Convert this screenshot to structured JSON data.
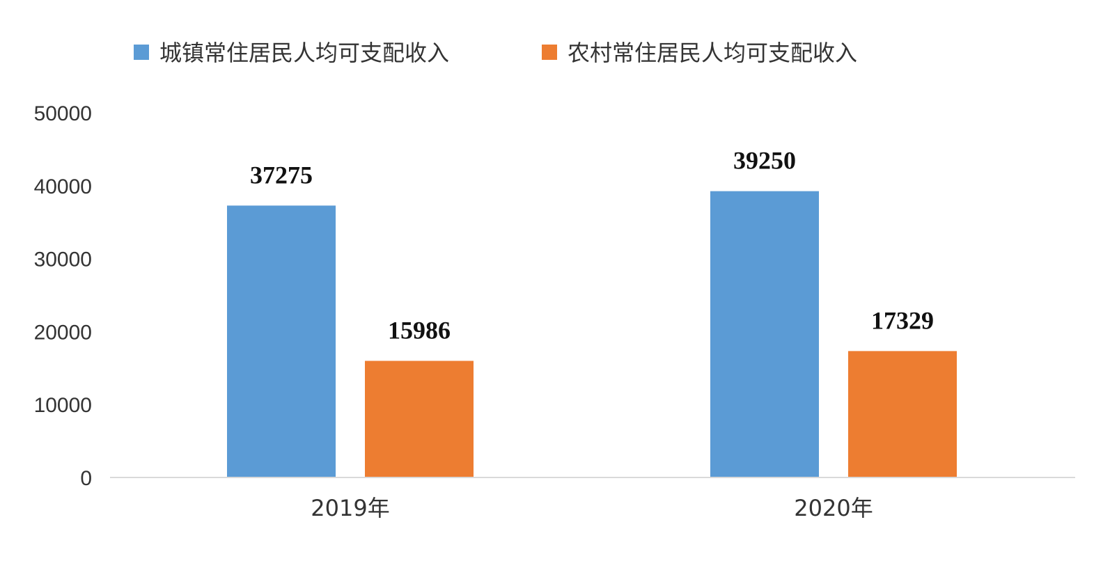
{
  "chart_data": {
    "type": "bar",
    "title": "",
    "xlabel": "",
    "ylabel": "",
    "categories": [
      "2019年",
      "2020年"
    ],
    "series": [
      {
        "name": "城镇常住居民人均可支配收入",
        "color": "#5b9bd5",
        "values": [
          37275,
          39250
        ]
      },
      {
        "name": "农村常住居民人均可支配收入",
        "color": "#ed7d31",
        "values": [
          15986,
          17329
        ]
      }
    ],
    "ylim": [
      0,
      50000
    ],
    "yticks": [
      0,
      10000,
      20000,
      30000,
      40000,
      50000
    ],
    "grid": false,
    "legend_position": "top",
    "data_labels": true
  }
}
